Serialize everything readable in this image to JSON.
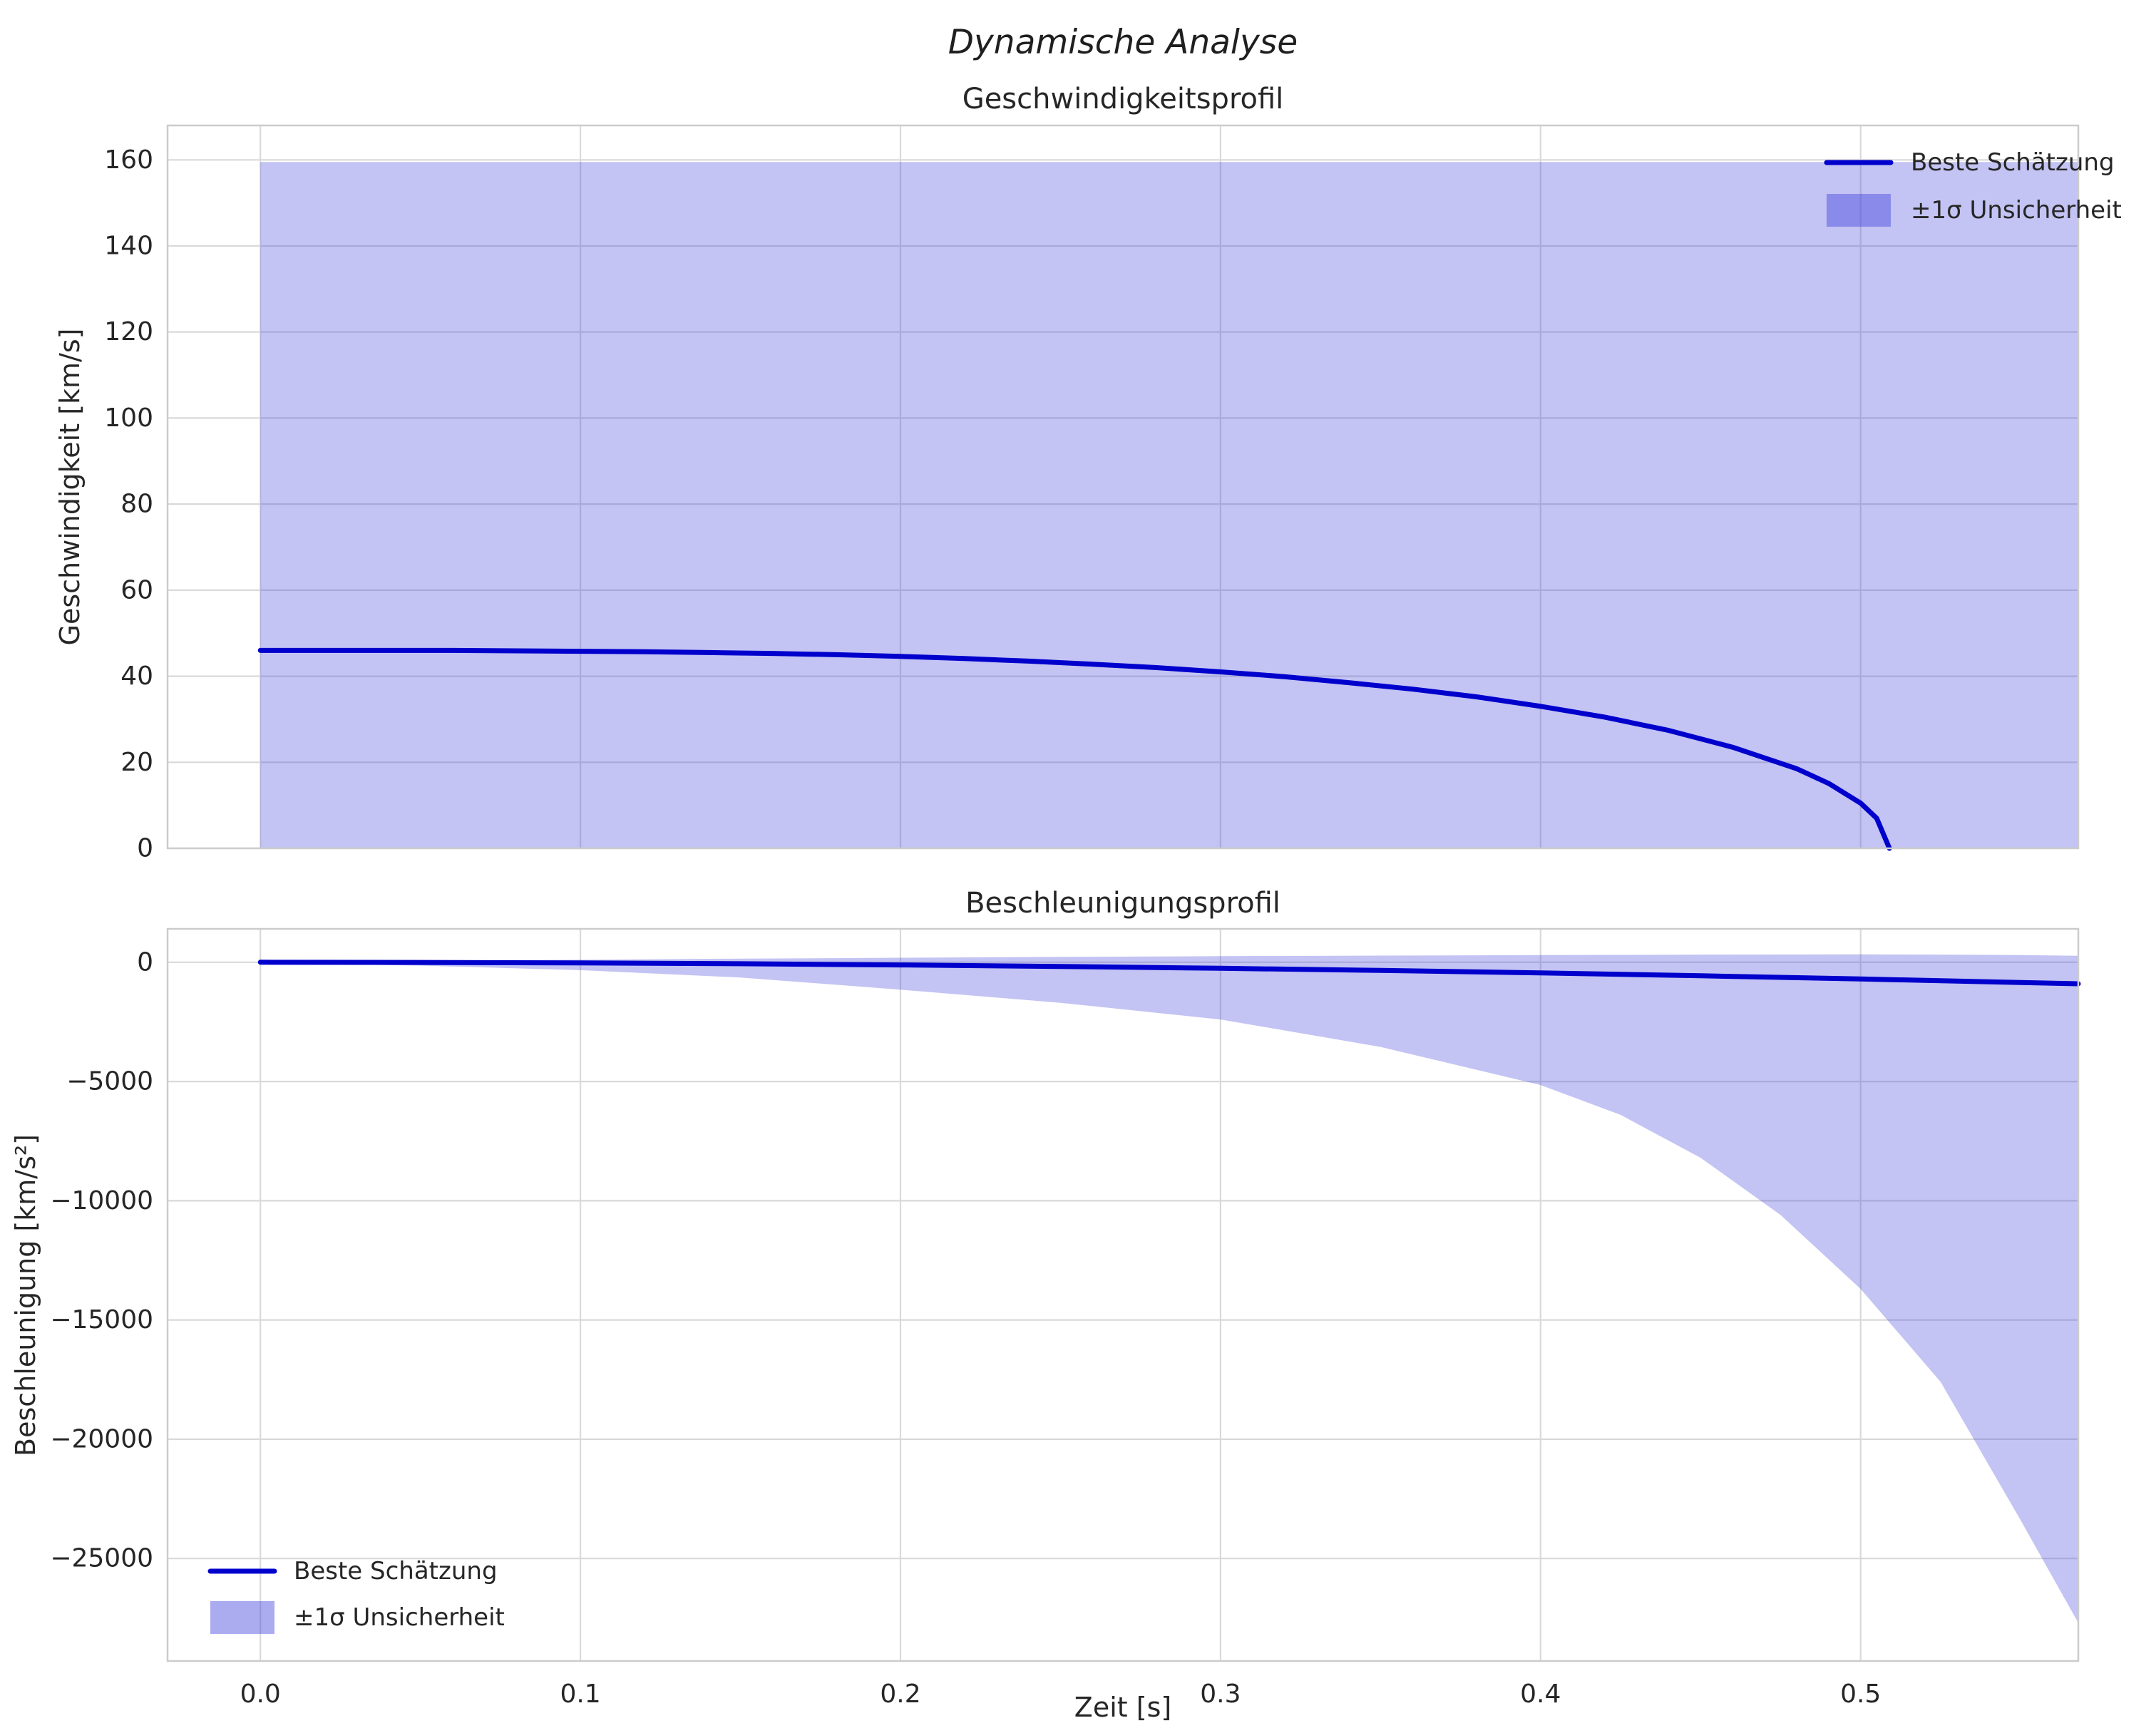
{
  "figure_title": "Dynamische Analyse",
  "xlabel": "Zeit [s]",
  "colors": {
    "line": "#0000cd",
    "band": "#4444dd",
    "band_opacity": 0.32,
    "grid": "#d9d9d9",
    "spine": "#cccccc",
    "text": "#262626"
  },
  "legend": {
    "line_label": "Beste Schätzung",
    "band_label": "±1σ Unsicherheit"
  },
  "chart_data": [
    {
      "type": "line",
      "title": "Geschwindigkeitsprofil",
      "ylabel": "Geschwindigkeit [km/s]",
      "xlim": [
        -0.029,
        0.568
      ],
      "ylim": [
        0,
        168
      ],
      "xticks": {
        "values": [
          0,
          0.1,
          0.2,
          0.3,
          0.4,
          0.5
        ],
        "labels": [
          "0.0",
          "0.1",
          "0.2",
          "0.3",
          "0.4",
          "0.5"
        ],
        "show_labels": false
      },
      "yticks": {
        "values": [
          0,
          20,
          40,
          60,
          80,
          100,
          120,
          140,
          160
        ],
        "labels": [
          "0",
          "20",
          "40",
          "60",
          "80",
          "100",
          "120",
          "140",
          "160"
        ]
      },
      "series": [
        {
          "name": "Beste Schätzung",
          "x": [
            0,
            0.02,
            0.04,
            0.06,
            0.08,
            0.1,
            0.12,
            0.14,
            0.16,
            0.18,
            0.2,
            0.22,
            0.24,
            0.26,
            0.28,
            0.3,
            0.32,
            0.34,
            0.36,
            0.38,
            0.4,
            0.42,
            0.44,
            0.46,
            0.48,
            0.49,
            0.5,
            0.505,
            0.509
          ],
          "y": [
            46.0,
            46.0,
            46.0,
            46.0,
            45.9,
            45.8,
            45.7,
            45.5,
            45.3,
            45.0,
            44.6,
            44.1,
            43.5,
            42.8,
            42.0,
            41.0,
            39.9,
            38.5,
            37.0,
            35.2,
            33.0,
            30.5,
            27.4,
            23.5,
            18.5,
            15.1,
            10.5,
            7.0,
            0.0
          ]
        }
      ],
      "band": {
        "name": "±1σ Unsicherheit",
        "x": [
          0,
          0.568
        ],
        "low": [
          0,
          0
        ],
        "high": [
          159.5,
          159.5
        ]
      },
      "legend_position": "top-right"
    },
    {
      "type": "line",
      "title": "Beschleunigungsprofil",
      "ylabel": "Beschleunigung [km/s²]",
      "xlim": [
        -0.029,
        0.568
      ],
      "ylim": [
        -29300,
        1400
      ],
      "xticks": {
        "values": [
          0,
          0.1,
          0.2,
          0.3,
          0.4,
          0.5
        ],
        "labels": [
          "0.0",
          "0.1",
          "0.2",
          "0.3",
          "0.4",
          "0.5"
        ],
        "show_labels": true
      },
      "yticks": {
        "values": [
          0,
          -5000,
          -10000,
          -15000,
          -20000,
          -25000
        ],
        "labels": [
          "0",
          "−5000",
          "−10000",
          "−15000",
          "−20000",
          "−25000"
        ]
      },
      "series": [
        {
          "name": "Beste Schätzung",
          "x": [
            0,
            0.05,
            0.1,
            0.15,
            0.2,
            0.25,
            0.3,
            0.35,
            0.4,
            0.45,
            0.5,
            0.55,
            0.568
          ],
          "y": [
            0,
            -7,
            -28,
            -63,
            -112,
            -175,
            -252,
            -343,
            -448,
            -567,
            -700,
            -847,
            -903
          ]
        }
      ],
      "band": {
        "name": "±1σ Unsicherheit",
        "x": [
          0,
          0.05,
          0.1,
          0.15,
          0.2,
          0.25,
          0.3,
          0.35,
          0.4,
          0.425,
          0.45,
          0.475,
          0.5,
          0.525,
          0.55,
          0.568
        ],
        "low": [
          -40,
          -140,
          -330,
          -640,
          -1150,
          -1700,
          -2400,
          -3550,
          -5150,
          -6400,
          -8200,
          -10600,
          -13700,
          -17600,
          -23400,
          -27700
        ],
        "high": [
          30,
          70,
          110,
          150,
          190,
          225,
          255,
          280,
          300,
          310,
          320,
          325,
          330,
          320,
          300,
          270
        ]
      },
      "legend_position": "bottom-left"
    }
  ]
}
